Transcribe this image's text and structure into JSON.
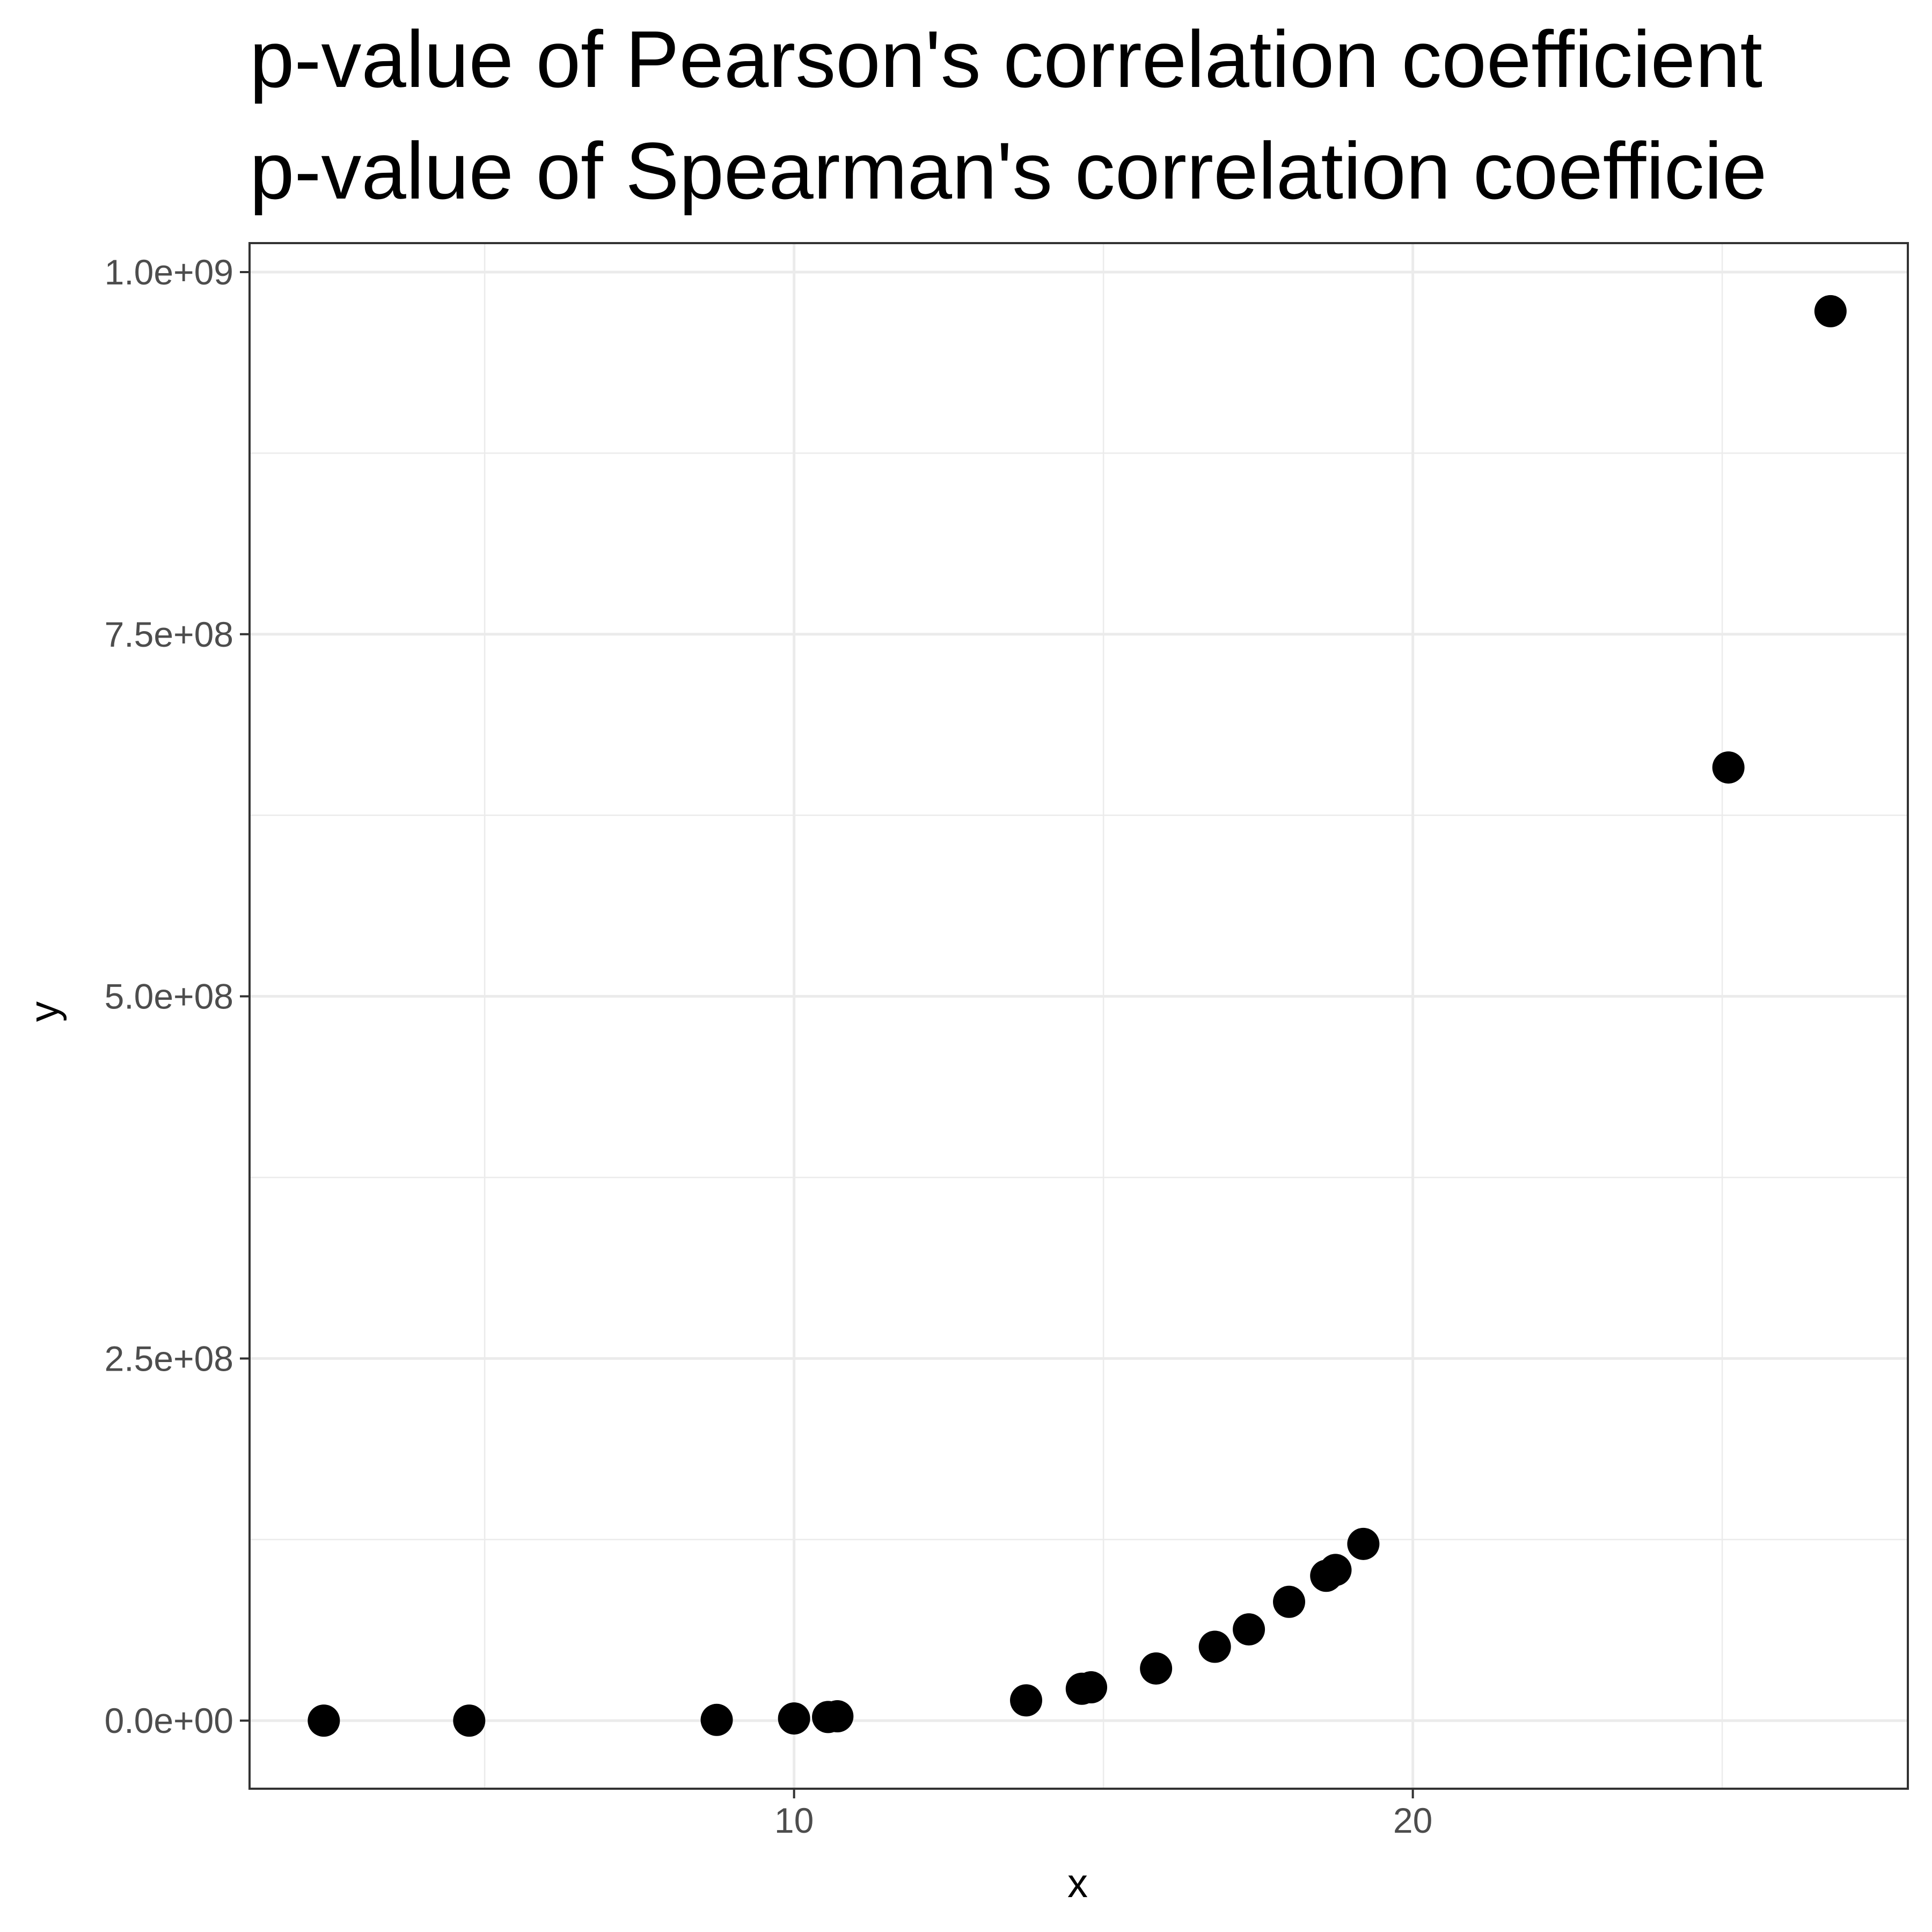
{
  "chart_data": {
    "type": "scatter",
    "title_lines": [
      "p-value of Pearson's correlation coefficient",
      "p-value of Spearman's correlation coefficie"
    ],
    "xlabel": "x",
    "ylabel": "y",
    "x_ticks": [
      10,
      20
    ],
    "x_tick_labels": [
      "10",
      "20"
    ],
    "y_ticks": [
      0,
      250000000,
      500000000,
      750000000,
      1000000000
    ],
    "y_tick_labels": [
      "0.0e+00",
      "2.5e+08",
      "5.0e+08",
      "7.5e+08",
      "1.0e+09"
    ],
    "xlim": [
      1.2,
      28.0
    ],
    "ylim": [
      -47000000,
      1020000000
    ],
    "grid": true,
    "point_color": "#000000",
    "points": [
      {
        "x": 2.4,
        "y": 0
      },
      {
        "x": 4.75,
        "y": 0
      },
      {
        "x": 8.75,
        "y": 500000
      },
      {
        "x": 10.0,
        "y": 1500000
      },
      {
        "x": 10.55,
        "y": 2500000
      },
      {
        "x": 10.7,
        "y": 3000000
      },
      {
        "x": 13.75,
        "y": 14000000
      },
      {
        "x": 14.65,
        "y": 22000000
      },
      {
        "x": 14.8,
        "y": 23000000
      },
      {
        "x": 15.85,
        "y": 36000000
      },
      {
        "x": 16.8,
        "y": 51000000
      },
      {
        "x": 17.35,
        "y": 63000000
      },
      {
        "x": 18.0,
        "y": 82000000
      },
      {
        "x": 18.6,
        "y": 100000000
      },
      {
        "x": 18.75,
        "y": 104000000
      },
      {
        "x": 19.2,
        "y": 122000000
      },
      {
        "x": 25.1,
        "y": 658000000
      },
      {
        "x": 26.75,
        "y": 973000000
      }
    ]
  }
}
